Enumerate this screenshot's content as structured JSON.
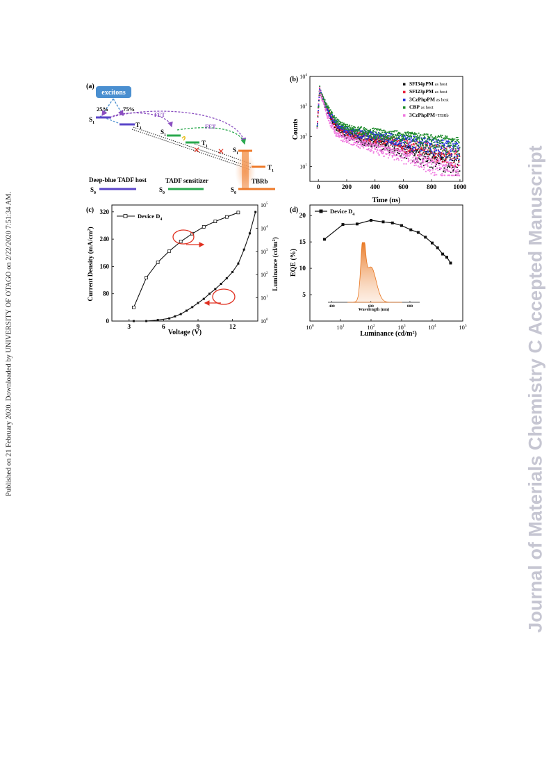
{
  "side_note": "Published on 21 February 2020. Downloaded by UNIVERSITY OF OTAGO on 2/22/2020 7:51:34 AM.",
  "watermark": "Journal of Materials Chemistry C Accepted Manuscript",
  "panel_a": {
    "label": "(a)",
    "excitons": "excitons",
    "singlet_pct": "25%",
    "triplet_pct": "75%",
    "fet1": "FET",
    "fet2": "FET",
    "s1": "S",
    "t1": "T",
    "sub1": "1",
    "sub0": "0",
    "tbrb": "TBRb",
    "host_label": "Deep-blue TADF host",
    "sens_label": "TADF sensitizer",
    "s0": "S",
    "colors": {
      "host": "#5a45c8",
      "sensitizer": "#2aa84e",
      "emitter": "#ee7a2a",
      "fet": "#8a4ec0",
      "excitons": "#4a8fd0"
    }
  },
  "chart_data": [
    {
      "panel": "(b)",
      "type": "scatter",
      "xlabel": "Time (ns)",
      "ylabel": "Counts",
      "xlim": [
        -60,
        1020
      ],
      "ylim_log10": [
        0.5,
        4
      ],
      "x_ticks": [
        "0",
        "200",
        "400",
        "600",
        "800",
        "1000"
      ],
      "y_tick_exponents": [
        "1",
        "2",
        "3",
        "4"
      ],
      "y_tick_base": "10",
      "scale_y": "log",
      "legend_position": "top-right",
      "series": [
        {
          "name": "SFI34pPM",
          "suffix": " as host",
          "color": "#111111",
          "peak": 4500,
          "a_fast": 3300,
          "tau_fast": 30,
          "b": 180,
          "tau_slow": 360
        },
        {
          "name": "SFI23pPM",
          "suffix": " as host",
          "color": "#e8233e",
          "peak": 4500,
          "a_fast": 3200,
          "tau_fast": 32,
          "b": 190,
          "tau_slow": 480
        },
        {
          "name": "3CzPhpPM",
          "suffix": " as host",
          "color": "#2030d8",
          "peak": 4500,
          "a_fast": 3100,
          "tau_fast": 35,
          "b": 210,
          "tau_slow": 580
        },
        {
          "name": "CBP",
          "suffix": " as host",
          "color": "#1c8a2a",
          "peak": 4600,
          "a_fast": 3000,
          "tau_fast": 38,
          "b": 240,
          "tau_slow": 680
        },
        {
          "name": "3CzPhpPM",
          "suffix": "+TBRb",
          "color": "#f078e0",
          "peak": 4300,
          "a_fast": 3400,
          "tau_fast": 25,
          "b": 140,
          "tau_slow": 330
        }
      ]
    },
    {
      "panel": "(c)",
      "type": "line",
      "xlabel": "Voltage (V)",
      "ylabel_left": "Current Density (mA/cm",
      "ylabel_left_sup": "2",
      "ylabel_left_end": ")",
      "ylabel_right": "Luminance (cd/m",
      "ylabel_right_sup": "2",
      "ylabel_right_end": ")",
      "xlim": [
        1.5,
        14.2
      ],
      "ylim": [
        0,
        340
      ],
      "y2lim_log10": [
        0,
        5
      ],
      "x_ticks": [
        "3",
        "6",
        "9",
        "12"
      ],
      "y_ticks": [
        "0",
        "80",
        "160",
        "240",
        "320"
      ],
      "y2_tick_exponents": [
        "0",
        "1",
        "2",
        "3",
        "4",
        "5"
      ],
      "y2_tick_base": "10",
      "legend_position": "top-left",
      "series": [
        {
          "name": "Device D",
          "name_sub": "4",
          "axis": "left",
          "marker": "open-square",
          "x": [
            3.4,
            4.5,
            5.5,
            6.5,
            7.5,
            8.5,
            9.5,
            10.5,
            11.5,
            12.5
          ],
          "y": [
            40,
            127,
            172,
            205,
            233,
            256,
            276,
            292,
            305,
            318
          ]
        },
        {
          "name": "Luminance",
          "axis": "right",
          "marker": "filled-square",
          "x": [
            3.4,
            4.5,
            5.5,
            6.5,
            7.0,
            7.5,
            8.0,
            8.5,
            9.0,
            9.5,
            10.0,
            10.5,
            11.0,
            11.5,
            12.0,
            12.5,
            13.0,
            13.5,
            14.0
          ],
          "y": [
            1,
            1,
            1.1,
            1.3,
            1.6,
            2,
            2.8,
            4,
            6,
            9,
            15,
            24,
            40,
            70,
            130,
            300,
            1200,
            6000,
            50000
          ]
        }
      ]
    },
    {
      "panel": "(d)",
      "type": "line",
      "xlabel": "Luminance (cd/m",
      "xlabel_sup": "2",
      "xlabel_end": ")",
      "ylabel": "EQE (%)",
      "scale_x": "log",
      "xlim_log10": [
        0,
        5
      ],
      "ylim": [
        0,
        22
      ],
      "x_tick_exponents": [
        "0",
        "1",
        "2",
        "3",
        "4",
        "5"
      ],
      "x_tick_base": "10",
      "y_ticks": [
        "5",
        "10",
        "15",
        "20"
      ],
      "legend_position": "top-left",
      "series": [
        {
          "name": "Device D",
          "name_sub": "4",
          "marker": "filled-square",
          "x": [
            3,
            12,
            35,
            100,
            250,
            500,
            1000,
            2000,
            3500,
            6000,
            10000,
            15000,
            22000,
            30000,
            40000
          ],
          "y": [
            15.5,
            18.3,
            18.4,
            19.1,
            18.8,
            18.6,
            18.1,
            17.3,
            16.8,
            15.9,
            14.8,
            13.9,
            12.7,
            12.1,
            11.0
          ]
        }
      ],
      "inset": {
        "type": "area",
        "xlabel": "Wavelength (nm)",
        "x_ticks": [
          "400",
          "600",
          "800"
        ],
        "xlim": [
          380,
          850
        ],
        "peak_nm": 560,
        "shoulder_nm": 600,
        "color": "#e8741c"
      }
    }
  ]
}
